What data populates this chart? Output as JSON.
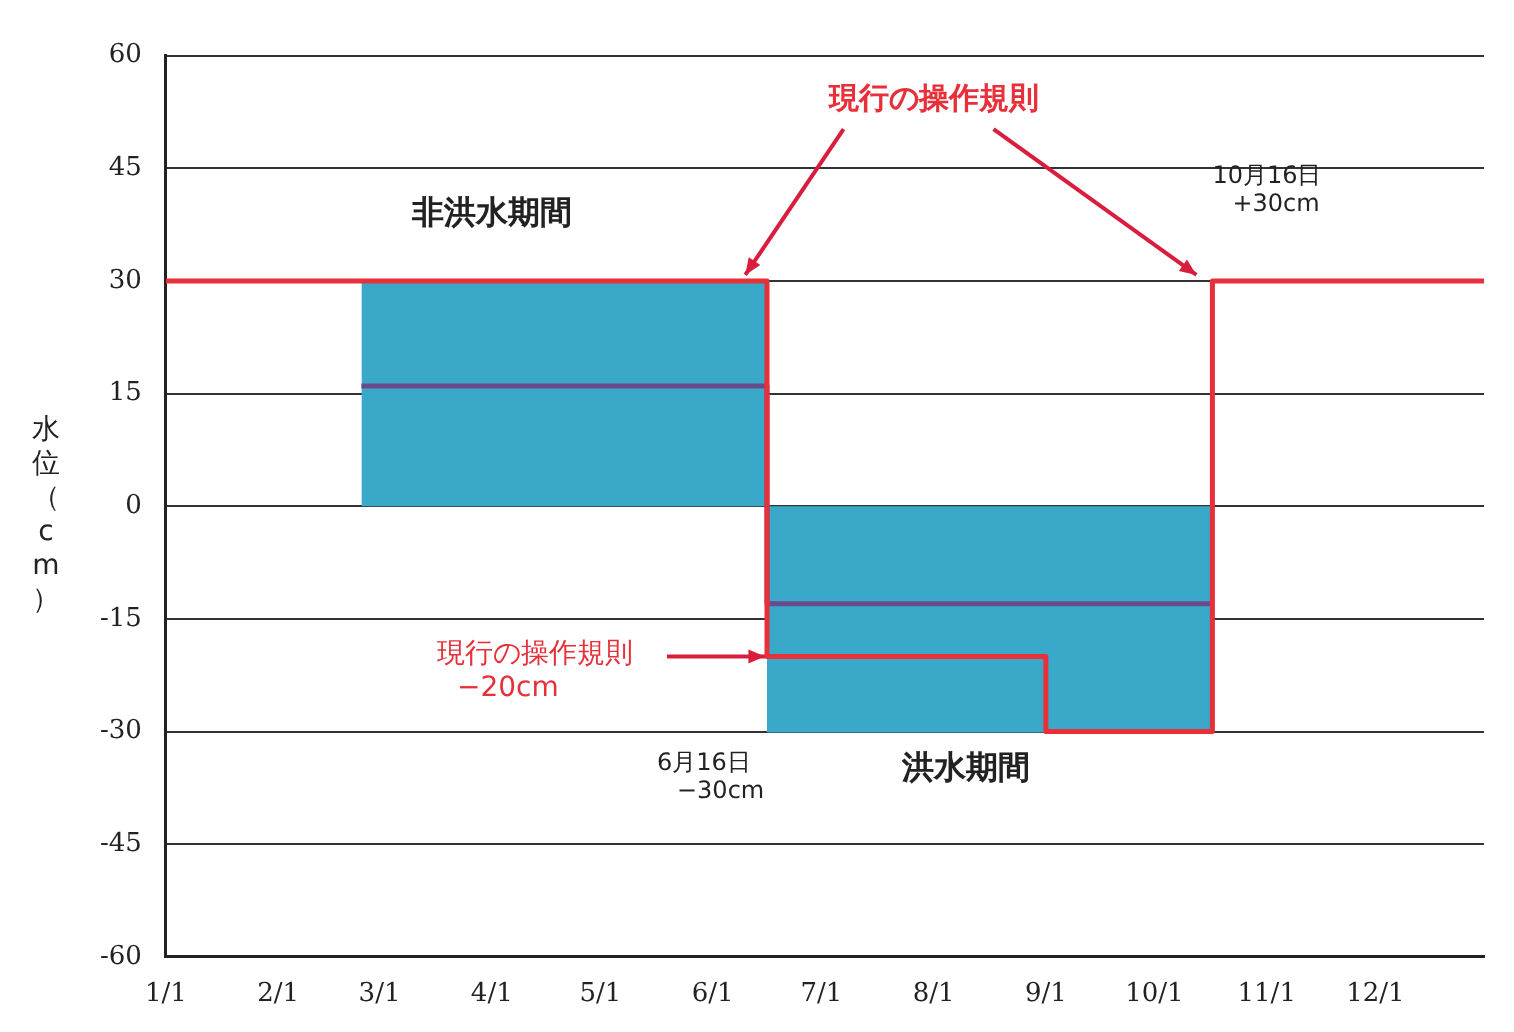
{
  "chart_data": {
    "type": "line",
    "ylabel": "水位（cm）",
    "xlim": [
      "--01-01",
      "--12-31"
    ],
    "xticks": [
      {
        "value": "--01-01",
        "label": "1/1"
      },
      {
        "value": "--02-01",
        "label": "2/1"
      },
      {
        "value": "--03-01",
        "label": "3/1"
      },
      {
        "value": "--04-01",
        "label": "4/1"
      },
      {
        "value": "--05-01",
        "label": "5/1"
      },
      {
        "value": "--06-01",
        "label": "6/1"
      },
      {
        "value": "--07-01",
        "label": "7/1"
      },
      {
        "value": "--08-01",
        "label": "8/1"
      },
      {
        "value": "--09-01",
        "label": "9/1"
      },
      {
        "value": "--10-01",
        "label": "10/1"
      },
      {
        "value": "--11-01",
        "label": "11/1"
      },
      {
        "value": "--12-01",
        "label": "12/1"
      }
    ],
    "ylim": [
      -60,
      60
    ],
    "yticks": [
      -60,
      -45,
      -30,
      -15,
      0,
      15,
      30,
      45,
      60
    ],
    "grid": "y",
    "legend": false,
    "series": [
      {
        "type": "area",
        "color": "#3aa8c8",
        "x": [
          "--02-24",
          "--06-16"
        ],
        "values": [
          30,
          30
        ]
      },
      {
        "type": "area",
        "color": "#3aa8c8",
        "x": [
          "--06-16",
          "--10-17"
        ],
        "values": [
          -30,
          -30
        ]
      },
      {
        "type": "line",
        "color": "#6a4a8a",
        "x": [
          "--02-24",
          "--06-16",
          "--06-16",
          "--10-17"
        ],
        "values": [
          16,
          16,
          -13,
          -13
        ]
      },
      {
        "type": "line",
        "color": "#e8303a",
        "x": [
          "--01-01",
          "--06-16",
          "--06-16",
          "--09-01",
          "--09-01",
          "--10-17",
          "--10-17",
          "--12-31"
        ],
        "values": [
          30,
          30,
          -20,
          -20,
          -30,
          -30,
          30,
          30
        ]
      }
    ],
    "annotations": [
      {
        "text": "現行の操作規則",
        "x": "--06-10",
        "y": 30
      },
      "非洪水期間",
      "洪水期間",
      {
        "text": "現行の操作規則\n−20cm",
        "x": "--06-16",
        "y": -20
      },
      {
        "text": "6月16日\n−30cm",
        "x": "--06-16",
        "y": -30
      },
      {
        "text": "10月16日\n+30cm",
        "x": "--10-17",
        "y": 30
      }
    ]
  }
}
